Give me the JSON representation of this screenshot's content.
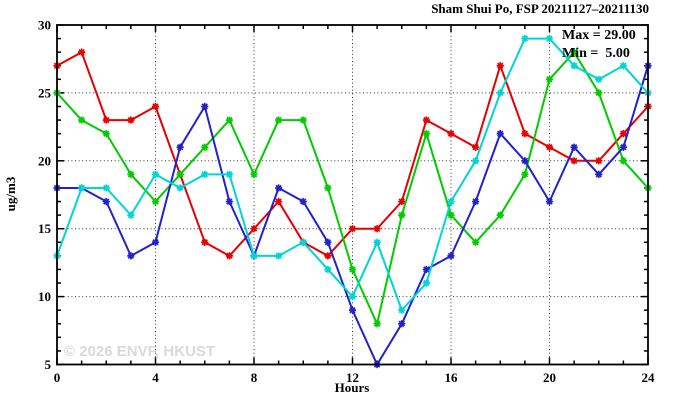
{
  "header": {
    "title": "Sham Shui Po, FSP 20211127–20211130"
  },
  "annotation": {
    "max_label": "Max = 29.00",
    "min_label": "Min =  5.00"
  },
  "watermark": "© 2026 ENVF, HKUST",
  "chart_data": {
    "type": "line",
    "title": "Sham Shui Po, FSP 20211127–20211130",
    "xlabel": "Hours",
    "ylabel": "ug/m3",
    "xlim": [
      0,
      24
    ],
    "ylim": [
      5,
      30
    ],
    "x_ticks": [
      0,
      4,
      8,
      12,
      16,
      20,
      24
    ],
    "y_ticks": [
      5,
      10,
      15,
      20,
      25,
      30
    ],
    "x_minor_step": 1,
    "y_minor_step": 1,
    "grid": "dotted",
    "legend": "none",
    "marker": "asterisk",
    "max_value": 29.0,
    "min_value": 5.0,
    "x": [
      0,
      1,
      2,
      3,
      4,
      5,
      6,
      7,
      8,
      9,
      10,
      11,
      12,
      13,
      14,
      15,
      16,
      17,
      18,
      19,
      20,
      21,
      22,
      23,
      24
    ],
    "series": [
      {
        "name": "red",
        "color": "#e60000",
        "values": [
          27,
          28,
          23,
          23,
          24,
          19,
          14,
          13,
          15,
          17,
          14,
          13,
          15,
          15,
          17,
          23,
          22,
          21,
          27,
          22,
          21,
          20,
          20,
          22,
          24
        ]
      },
      {
        "name": "green",
        "color": "#00cc00",
        "values": [
          25,
          23,
          22,
          19,
          17,
          19,
          21,
          23,
          19,
          23,
          23,
          18,
          12,
          8,
          16,
          22,
          16,
          14,
          16,
          19,
          26,
          28,
          25,
          20,
          18
        ]
      },
      {
        "name": "blue",
        "color": "#2222cc",
        "values": [
          18,
          18,
          17,
          13,
          14,
          21,
          24,
          17,
          13,
          18,
          17,
          14,
          9,
          5,
          8,
          12,
          13,
          17,
          22,
          20,
          17,
          21,
          19,
          21,
          27
        ]
      },
      {
        "name": "cyan",
        "color": "#00d5d5",
        "values": [
          13,
          18,
          18,
          16,
          19,
          18,
          19,
          19,
          13,
          13,
          14,
          12,
          10,
          14,
          9,
          11,
          17,
          20,
          25,
          29,
          29,
          27,
          26,
          27,
          25
        ]
      }
    ]
  }
}
